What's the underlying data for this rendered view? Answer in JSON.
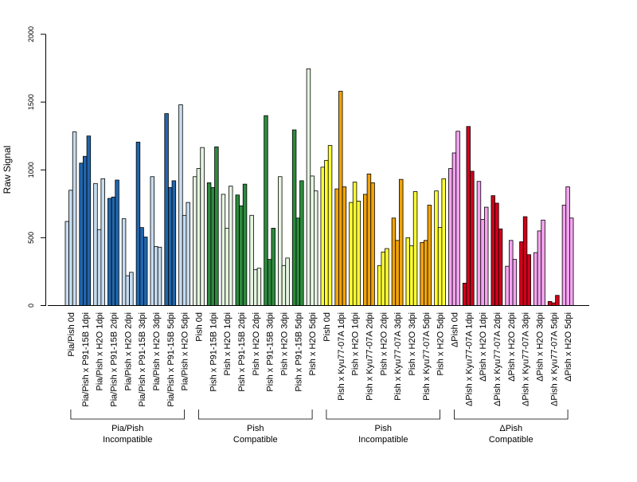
{
  "chart_data": {
    "type": "bar",
    "ylabel": "Raw Signal",
    "ylim": [
      0,
      2000
    ],
    "yticks": [
      0,
      500,
      1000,
      1500,
      2000
    ],
    "grid": false,
    "legend": "none",
    "categories": [
      {
        "label": "Pia/Pish 0d",
        "color": "#c6dbef",
        "values": [
          620,
          850,
          1280
        ]
      },
      {
        "label": "Pia/Pish x P91-15B 1dpi",
        "color": "#2166ac",
        "values": [
          1050,
          1100,
          1250
        ]
      },
      {
        "label": "Pia/Pish x H2O 1dpi",
        "color": "#c6dbef",
        "values": [
          900,
          560,
          935
        ]
      },
      {
        "label": "Pia/Pish x P91-15B 2dpi",
        "color": "#2166ac",
        "values": [
          790,
          800,
          925
        ]
      },
      {
        "label": "Pia/Pish x H2O 2dpi",
        "color": "#c6dbef",
        "values": [
          640,
          220,
          245
        ]
      },
      {
        "label": "Pia/Pish x P91-15B 3dpi",
        "color": "#2166ac",
        "values": [
          1205,
          575,
          505
        ]
      },
      {
        "label": "Pia/Pish x H2O 3dpi",
        "color": "#c6dbef",
        "values": [
          950,
          435,
          430
        ]
      },
      {
        "label": "Pia/Pish x P91-15B 5dpi",
        "color": "#2166ac",
        "values": [
          1415,
          870,
          920
        ]
      },
      {
        "label": "Pia/Pish x H2O 5dpi",
        "color": "#c6dbef",
        "values": [
          1480,
          665,
          760
        ]
      },
      {
        "label": "Pish 0d",
        "color": "#e5f5e0",
        "values": [
          950,
          1010,
          1165
        ]
      },
      {
        "label": "Pish x P91-15B 1dpi",
        "color": "#2d8a3e",
        "values": [
          905,
          870,
          1170
        ]
      },
      {
        "label": "Pish x H2O 1dpi",
        "color": "#e5f5e0",
        "values": [
          820,
          570,
          880
        ]
      },
      {
        "label": "Pish x P91-15B 2dpi",
        "color": "#2d8a3e",
        "values": [
          815,
          735,
          895
        ]
      },
      {
        "label": "Pish x H2O 2dpi",
        "color": "#e5f5e0",
        "values": [
          665,
          265,
          275
        ]
      },
      {
        "label": "Pish x P91-15B 3dpi",
        "color": "#2d8a3e",
        "values": [
          1400,
          340,
          570
        ]
      },
      {
        "label": "Pish x H2O 3dpi",
        "color": "#e5f5e0",
        "values": [
          950,
          295,
          350
        ]
      },
      {
        "label": "Pish x P91-15B 5dpi",
        "color": "#2d8a3e",
        "values": [
          1295,
          645,
          920
        ]
      },
      {
        "label": "Pish x H2O 5dpi",
        "color": "#e5f5e0",
        "values": [
          1745,
          955,
          845
        ]
      },
      {
        "label": "Pish 0d",
        "color": "#ffff33",
        "values": [
          1020,
          1070,
          1180
        ]
      },
      {
        "label": "Pish x Kyu77-07A 1dpi",
        "color": "#f0a30a",
        "values": [
          860,
          1580,
          875
        ]
      },
      {
        "label": "Pish x H2O 1dpi",
        "color": "#ffff33",
        "values": [
          760,
          910,
          770
        ]
      },
      {
        "label": "Pish x Kyu77-07A 2dpi",
        "color": "#f0a30a",
        "values": [
          820,
          970,
          905
        ]
      },
      {
        "label": "Pish x H2O 2dpi",
        "color": "#ffff33",
        "values": [
          295,
          395,
          420
        ]
      },
      {
        "label": "Pish x Kyu77-07A 3dpi",
        "color": "#f0a30a",
        "values": [
          645,
          480,
          930
        ]
      },
      {
        "label": "Pish x H2O 3dpi",
        "color": "#ffff33",
        "values": [
          500,
          440,
          840
        ]
      },
      {
        "label": "Pish x Kyu77-07A 5dpi",
        "color": "#f0a30a",
        "values": [
          465,
          480,
          740
        ]
      },
      {
        "label": "Pish x H2O 5dpi",
        "color": "#ffff33",
        "values": [
          845,
          575,
          935
        ]
      },
      {
        "label": "ΔPish 0d",
        "color": "#f5a3f0",
        "values": [
          1010,
          1125,
          1285
        ]
      },
      {
        "label": "ΔPish x Kyu77-07A 1dpi",
        "color": "#d0021b",
        "values": [
          165,
          1320,
          990
        ]
      },
      {
        "label": "ΔPish x H2O 1dpi",
        "color": "#f5a3f0",
        "values": [
          915,
          635,
          725
        ]
      },
      {
        "label": "ΔPish x Kyu77-07A 2dpi",
        "color": "#d0021b",
        "values": [
          810,
          755,
          565
        ]
      },
      {
        "label": "ΔPish x H2O 2dpi",
        "color": "#f5a3f0",
        "values": [
          290,
          480,
          340
        ]
      },
      {
        "label": "ΔPish x Kyu77-07A 3dpi",
        "color": "#d0021b",
        "values": [
          470,
          655,
          375
        ]
      },
      {
        "label": "ΔPish x H2O 3dpi",
        "color": "#f5a3f0",
        "values": [
          390,
          550,
          630
        ]
      },
      {
        "label": "ΔPish x Kyu77-07A 5dpi",
        "color": "#d0021b",
        "values": [
          30,
          20,
          75
        ]
      },
      {
        "label": "ΔPish x H2O 5dpi",
        "color": "#f5a3f0",
        "values": [
          740,
          875,
          645
        ]
      }
    ],
    "groups": [
      {
        "label_line1": "Pia/Pish",
        "label_line2": "Incompatible",
        "start": 0,
        "end": 8
      },
      {
        "label_line1": "Pish",
        "label_line2": "Compatible",
        "start": 9,
        "end": 17
      },
      {
        "label_line1": "Pish",
        "label_line2": "Incompatible",
        "start": 18,
        "end": 26
      },
      {
        "label_line1": "ΔPish",
        "label_line2": "Compatible",
        "start": 27,
        "end": 35
      }
    ]
  }
}
